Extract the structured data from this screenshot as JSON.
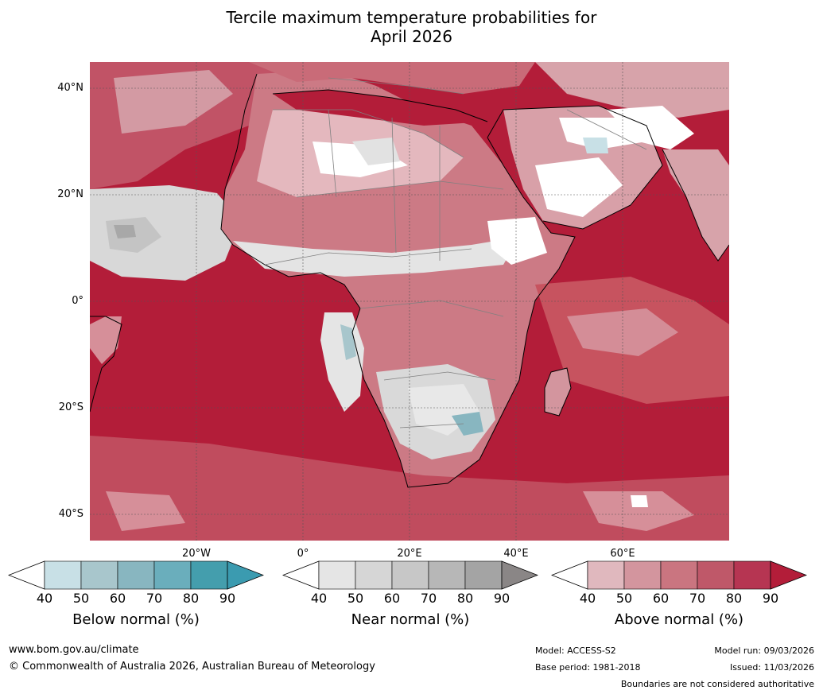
{
  "title_line1": "Tercile maximum temperature probabilities for",
  "title_line2": "April 2026",
  "lat_labels": [
    "40°N",
    "20°N",
    "0°",
    "20°S",
    "40°S"
  ],
  "lon_labels": [
    "20°W",
    "0°",
    "20°E",
    "40°E",
    "60°E"
  ],
  "colorbars": [
    {
      "label": "Below normal (%)",
      "ticks": [
        "40",
        "50",
        "60",
        "70",
        "80",
        "90"
      ],
      "colors": [
        "#c8e0e6",
        "#a8c6cc",
        "#88b6c0",
        "#6aaebc",
        "#449ead"
      ],
      "min_color": "#ffffff",
      "max_color": "#3b9bb0"
    },
    {
      "label": "Near normal (%)",
      "ticks": [
        "40",
        "50",
        "60",
        "70",
        "80",
        "90"
      ],
      "colors": [
        "#e5e5e5",
        "#d6d6d6",
        "#c7c7c7",
        "#b7b7b7",
        "#a4a4a4"
      ],
      "min_color": "#ffffff",
      "max_color": "#8a8686"
    },
    {
      "label": "Above normal (%)",
      "ticks": [
        "40",
        "50",
        "60",
        "70",
        "80",
        "90"
      ],
      "colors": [
        "#e0b8be",
        "#d3959e",
        "#ca7580",
        "#bf5869",
        "#b63552"
      ],
      "min_color": "#ffffff",
      "max_color": "#b31d39"
    }
  ],
  "footer": {
    "website": "www.bom.gov.au/climate",
    "copyright": "© Commonwealth of Australia 2026, Australian Bureau of Meteorology",
    "model": "Model: ACCESS-S2",
    "base_period": "Base period: 1981-2018",
    "model_run": "Model run: 09/03/2026",
    "issued": "Issued: 11/03/2026",
    "disclaimer": "Boundaries are not considered authoritative"
  }
}
